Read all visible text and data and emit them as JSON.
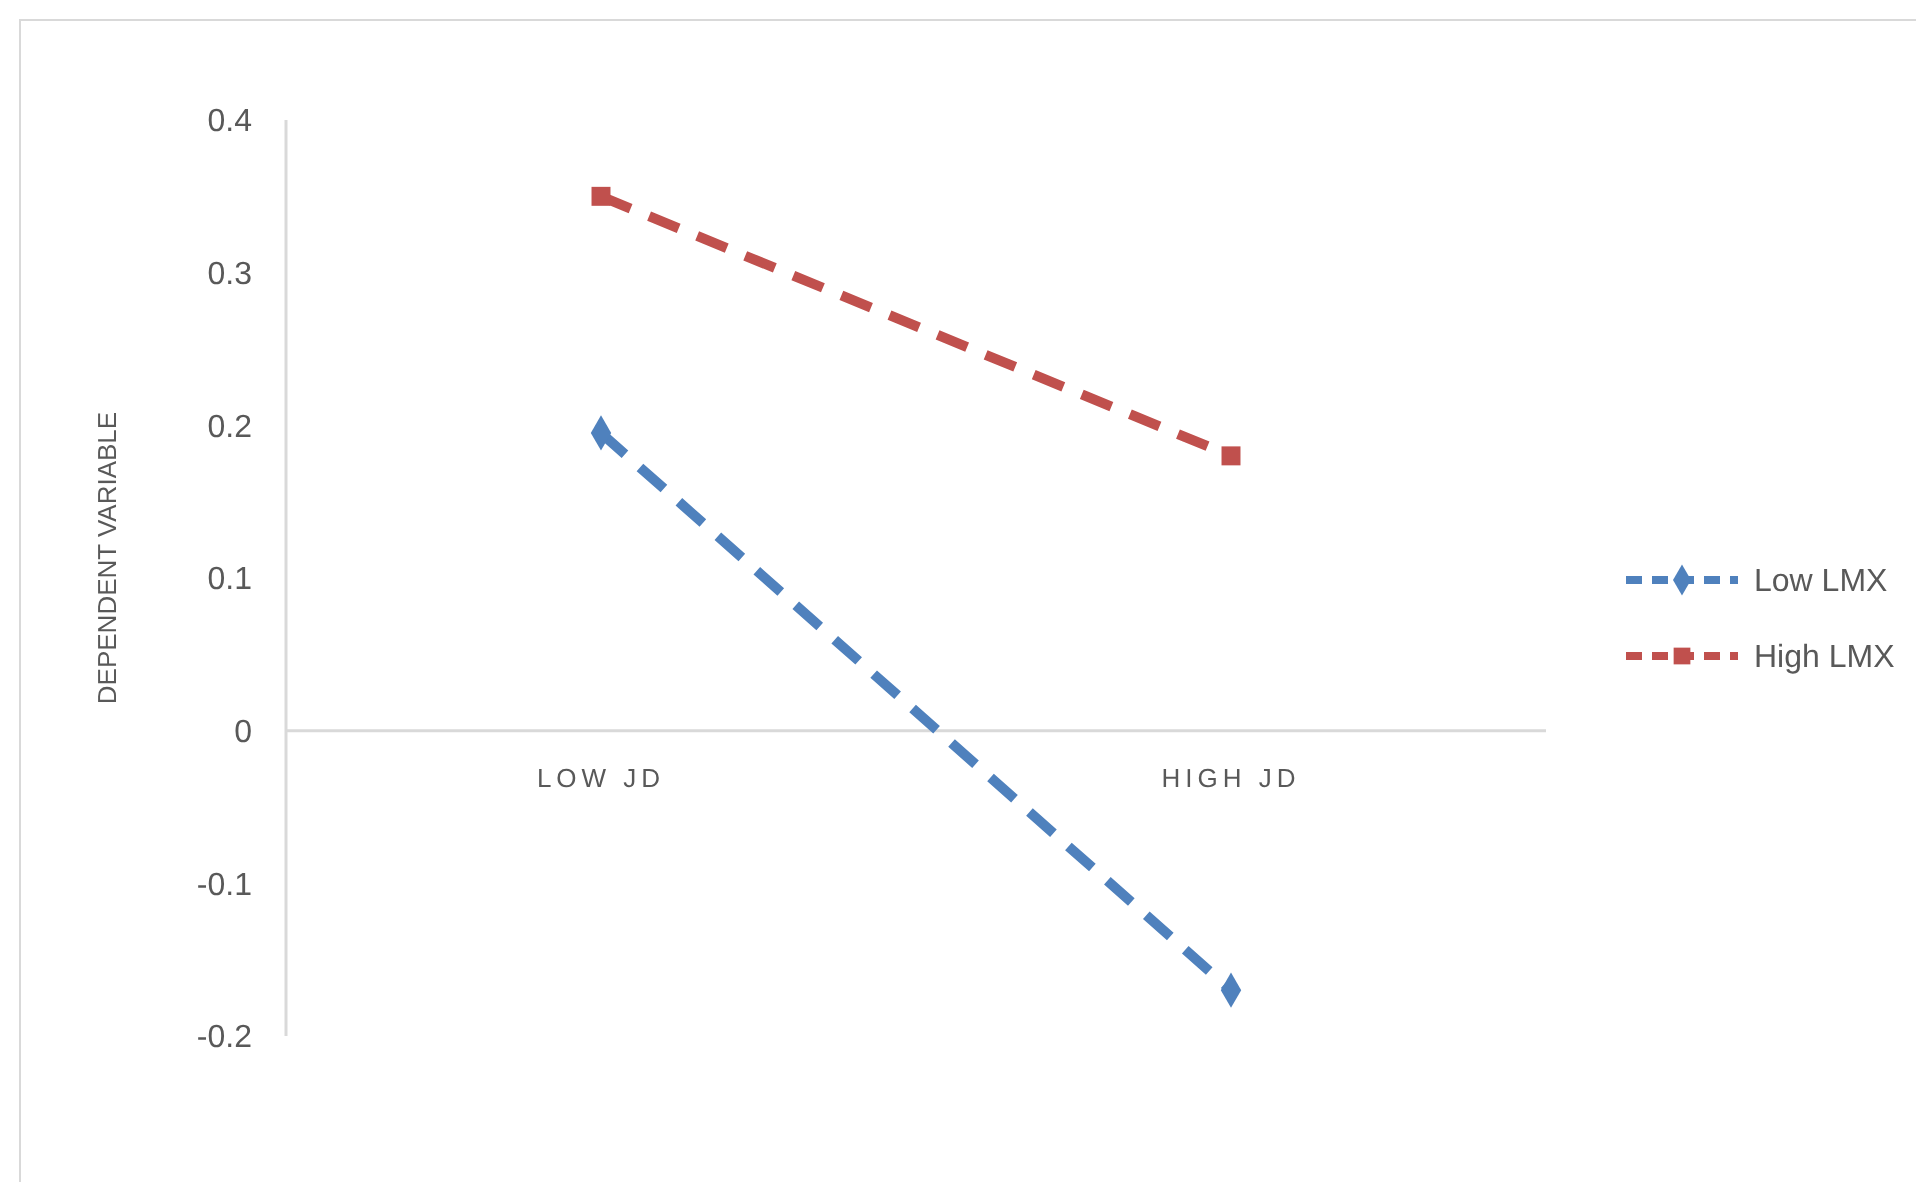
{
  "chart_data": {
    "type": "line",
    "ylabel": "DEPENDENT VARIABLE",
    "categories": [
      "LOW JD",
      "HIGH JD"
    ],
    "series": [
      {
        "name": "Low LMX",
        "color": "#4f81bd",
        "values": [
          0.195,
          -0.17
        ],
        "marker": "diamond"
      },
      {
        "name": "High LMX",
        "color": "#c0504d",
        "values": [
          0.35,
          0.18
        ],
        "marker": "square"
      }
    ],
    "ylim": [
      -0.2,
      0.4
    ],
    "yticks": [
      -0.2,
      -0.1,
      0,
      0.1,
      0.2,
      0.3,
      0.4
    ],
    "grid": false,
    "legend": "right",
    "line_style": "dashed"
  }
}
